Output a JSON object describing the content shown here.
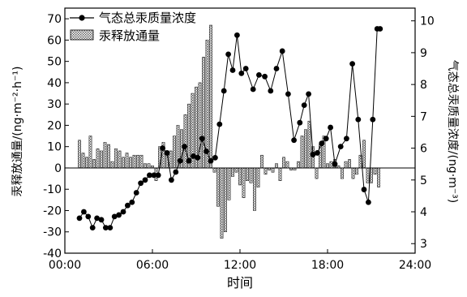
{
  "chart_data": {
    "type": "bar+line",
    "xlabel": "时间",
    "ylabel_left": "汞释放通量/(ng·m⁻²·h⁻¹)",
    "ylabel_right": "气态总汞质量浓度/(ng·m⁻³)",
    "x_ticks": [
      "00:00",
      "06:00",
      "12:00",
      "18:00",
      "24:00"
    ],
    "x_range_hours": [
      0,
      24
    ],
    "y_left_ticks": [
      -40,
      -30,
      -20,
      -10,
      0,
      10,
      20,
      30,
      40,
      50,
      60,
      70
    ],
    "y_left_range": [
      -40,
      75
    ],
    "y_right_ticks": [
      3,
      4,
      5,
      6,
      7,
      8,
      9,
      10
    ],
    "y_right_range": [
      2.7,
      10.4
    ],
    "legend_position": "top-left",
    "series": [
      {
        "name": "气态总汞质量浓度",
        "kind": "line",
        "axis": "right",
        "x_hours": [
          1.0,
          1.3,
          1.6,
          1.9,
          2.2,
          2.5,
          2.8,
          3.1,
          3.4,
          3.7,
          4.0,
          4.3,
          4.6,
          4.9,
          5.2,
          5.5,
          5.8,
          6.1,
          6.4,
          6.7,
          7.0,
          7.3,
          7.6,
          7.9,
          8.2,
          8.5,
          8.8,
          9.1,
          9.4,
          9.7,
          10.0,
          10.3,
          10.6,
          10.9,
          11.2,
          11.5,
          11.8,
          12.1,
          12.4,
          12.9,
          13.3,
          13.7,
          14.1,
          14.5,
          14.9,
          15.3,
          15.7,
          16.1,
          16.4,
          16.7,
          17.0,
          17.3,
          17.6,
          17.9,
          18.2,
          18.5,
          18.9,
          19.3,
          19.7,
          20.1,
          20.5,
          20.8,
          21.1,
          21.4
        ],
        "values": [
          3.8,
          4.0,
          3.85,
          3.5,
          3.8,
          3.75,
          3.5,
          3.5,
          3.85,
          3.9,
          4.0,
          4.2,
          4.3,
          4.6,
          4.9,
          5.0,
          5.15,
          5.15,
          5.15,
          6.0,
          5.85,
          5.0,
          5.25,
          5.6,
          6.05,
          5.6,
          5.75,
          5.7,
          6.3,
          5.9,
          5.6,
          5.7,
          6.75,
          7.8,
          8.95,
          8.45,
          9.55,
          8.35,
          8.5,
          7.85,
          8.3,
          8.25,
          7.8,
          8.5,
          9.05,
          7.7,
          6.25,
          6.8,
          7.35,
          7.7,
          5.8,
          5.85,
          6.15,
          6.3,
          6.65,
          5.5,
          6.05,
          6.3,
          8.65,
          6.9,
          4.7,
          4.3,
          6.9,
          9.75
        ],
        "end_points": [
          {
            "x_hours": 21.4,
            "value": 9.75
          },
          {
            "x_hours": 21.6,
            "value": 9.75
          }
        ]
      },
      {
        "name": "汞释放通量",
        "kind": "bar",
        "axis": "left",
        "x_hours": [
          1.0,
          1.25,
          1.5,
          1.75,
          2.0,
          2.25,
          2.5,
          2.75,
          3.0,
          3.25,
          3.5,
          3.75,
          4.0,
          4.25,
          4.5,
          4.75,
          5.0,
          5.25,
          5.5,
          5.75,
          6.0,
          6.25,
          6.5,
          6.75,
          7.0,
          7.25,
          7.5,
          7.75,
          8.0,
          8.25,
          8.5,
          8.75,
          9.0,
          9.25,
          9.5,
          9.75,
          10.0,
          10.25,
          10.5,
          10.75,
          11.0,
          11.25,
          11.5,
          11.75,
          12.0,
          12.25,
          12.5,
          12.75,
          13.0,
          13.25,
          13.5,
          13.75,
          14.0,
          14.25,
          14.5,
          14.75,
          15.0,
          15.25,
          15.5,
          15.75,
          16.0,
          16.25,
          16.5,
          16.75,
          17.0,
          17.25,
          17.5,
          17.75,
          18.0,
          18.25,
          18.5,
          18.75,
          19.0,
          19.25,
          19.5,
          19.75,
          20.0,
          20.25,
          20.5,
          20.75,
          21.0,
          21.25,
          21.5
        ],
        "values": [
          13,
          7,
          5,
          15,
          4,
          9,
          8,
          12,
          11,
          3,
          9,
          8,
          5,
          7,
          5,
          6,
          6,
          6,
          2,
          2,
          1,
          -6,
          10,
          12,
          6,
          8,
          15,
          20,
          18,
          25,
          30,
          35,
          38,
          40,
          52,
          60,
          67,
          -2,
          -18,
          -33,
          -30,
          -15,
          -4,
          -2,
          -8,
          -14,
          -6,
          -7,
          -20,
          -9,
          6,
          -3,
          -1,
          -2,
          2,
          -6,
          5,
          3,
          -1,
          -1,
          3,
          15,
          18,
          22,
          10,
          -5,
          11,
          15,
          2,
          3,
          4,
          1,
          -5,
          3,
          4,
          -5,
          -3,
          6,
          13,
          -7,
          -7,
          -3,
          -9
        ]
      }
    ]
  }
}
